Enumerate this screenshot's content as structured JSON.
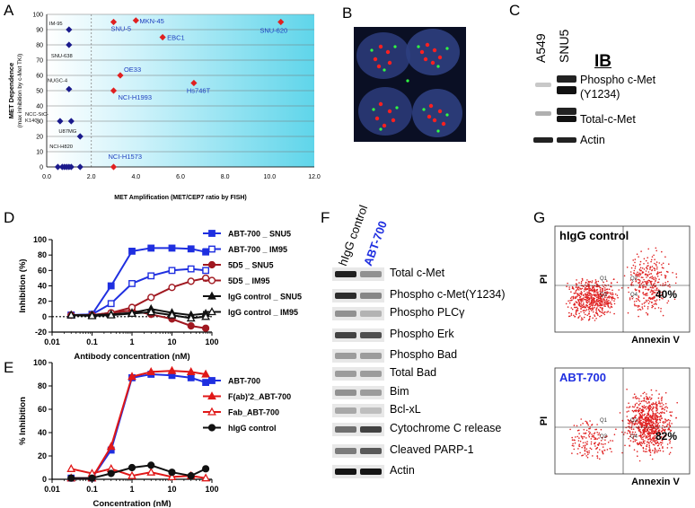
{
  "figure": {
    "panel_letters": [
      "A",
      "B",
      "C",
      "D",
      "E",
      "F",
      "G"
    ]
  },
  "chart_data": [
    {
      "panel": "A",
      "type": "scatter",
      "xlabel": "MET Amplification (MET/CEP7 ratio by FISH)",
      "ylabel_line1": "MET Dependence",
      "ylabel_line2": "(max inhibition by c-Met TKI)",
      "xlim": [
        0,
        12
      ],
      "ylim": [
        0,
        100
      ],
      "xticks": [
        "0.0",
        "2.0",
        "4.0",
        "6.0",
        "8.0",
        "10.0",
        "12.0"
      ],
      "yticks": [
        "0",
        "10",
        "20",
        "30",
        "40",
        "50",
        "60",
        "70",
        "80",
        "90",
        "100"
      ],
      "grid": true,
      "colors": {
        "background_left": "#ffffff",
        "background_right": "#5fd5ea",
        "diamond_blue": "#1a1a8c",
        "diamond_red": "#e02020",
        "label_blue": "#1f3fbf"
      },
      "points": [
        {
          "x": 1.0,
          "y": 90,
          "color": "blue",
          "label": "IM-95"
        },
        {
          "x": 1.0,
          "y": 80,
          "color": "blue",
          "label": "SNU-638"
        },
        {
          "x": 1.0,
          "y": 51,
          "color": "blue",
          "label": "NUGC-4"
        },
        {
          "x": 0.6,
          "y": 30,
          "color": "blue",
          "label": "NCC-StC-K140"
        },
        {
          "x": 1.1,
          "y": 30,
          "color": "blue",
          "label": "U87MG"
        },
        {
          "x": 1.5,
          "y": 20,
          "color": "blue",
          "label": "NCI-H820"
        },
        {
          "x": 0.5,
          "y": 0,
          "color": "blue",
          "label": ""
        },
        {
          "x": 0.7,
          "y": 0,
          "color": "blue",
          "label": ""
        },
        {
          "x": 0.8,
          "y": 0,
          "color": "blue",
          "label": ""
        },
        {
          "x": 0.9,
          "y": 0,
          "color": "blue",
          "label": ""
        },
        {
          "x": 1.0,
          "y": 0,
          "color": "blue",
          "label": ""
        },
        {
          "x": 1.1,
          "y": 0,
          "color": "blue",
          "label": ""
        },
        {
          "x": 1.5,
          "y": 0,
          "color": "blue",
          "label": ""
        },
        {
          "x": 3.0,
          "y": 95,
          "color": "red",
          "label": "SNU-5"
        },
        {
          "x": 4.0,
          "y": 96,
          "color": "red",
          "label": "MKN-45"
        },
        {
          "x": 5.2,
          "y": 85,
          "color": "red",
          "label": "EBC1"
        },
        {
          "x": 10.5,
          "y": 95,
          "color": "red",
          "label": "SNU-620"
        },
        {
          "x": 3.3,
          "y": 60,
          "color": "red",
          "label": "OE33"
        },
        {
          "x": 3.0,
          "y": 50,
          "color": "red",
          "label": "NCI-H1993"
        },
        {
          "x": 6.6,
          "y": 55,
          "color": "red",
          "label": "Hs746T"
        },
        {
          "x": 3.0,
          "y": 0,
          "color": "red",
          "label": "NCI-H1573"
        }
      ]
    },
    {
      "panel": "D",
      "type": "line",
      "xscale": "log",
      "xlabel": "Antibody concentration (nM)",
      "ylabel": "Inhibition (%)",
      "xlim": [
        0.01,
        100
      ],
      "ylim": [
        -20,
        100
      ],
      "xticks": [
        "0.01",
        "0.1",
        "1",
        "10",
        "100"
      ],
      "yticks": [
        "-20",
        "0",
        "20",
        "40",
        "60",
        "80",
        "100"
      ],
      "x": [
        0.03,
        0.1,
        0.3,
        1,
        3,
        10,
        30,
        70
      ],
      "series": [
        {
          "name": "ABT-700 _ SNU5",
          "color": "#1f2fe0",
          "marker": "square-filled",
          "values": [
            2,
            3,
            40,
            85,
            89,
            89,
            88,
            84
          ]
        },
        {
          "name": "ABT-700 _ IM95",
          "color": "#1f2fe0",
          "marker": "square-open",
          "values": [
            2,
            3,
            17,
            43,
            53,
            60,
            62,
            60
          ]
        },
        {
          "name": "5D5 _ SNU5",
          "color": "#a01820",
          "marker": "circle-filled",
          "values": [
            2,
            2,
            5,
            8,
            3,
            -3,
            -12,
            -15
          ]
        },
        {
          "name": "5D5 _ IM95",
          "color": "#a01820",
          "marker": "circle-open",
          "values": [
            2,
            2,
            5,
            12,
            25,
            38,
            46,
            50
          ]
        },
        {
          "name": "IgG control _ SNU5",
          "color": "#111111",
          "marker": "triangle-filled",
          "values": [
            2,
            2,
            3,
            5,
            10,
            5,
            2,
            4
          ]
        },
        {
          "name": "IgG control _ IM95",
          "color": "#111111",
          "marker": "triangle-open",
          "values": [
            2,
            1,
            2,
            4,
            6,
            2,
            -2,
            0
          ]
        }
      ]
    },
    {
      "panel": "E",
      "type": "line",
      "xscale": "log",
      "xlabel": "Concentration (nM)",
      "ylabel": "% Inhibition",
      "xlim": [
        0.01,
        100
      ],
      "ylim": [
        0,
        100
      ],
      "xticks": [
        "0.01",
        "0.1",
        "1",
        "10",
        "100"
      ],
      "yticks": [
        "0",
        "20",
        "40",
        "60",
        "80",
        "100"
      ],
      "x": [
        0.03,
        0.1,
        0.3,
        1,
        3,
        10,
        30,
        70
      ],
      "series": [
        {
          "name": "ABT-700",
          "color": "#1f2fe0",
          "marker": "square-filled",
          "values": [
            1,
            1,
            25,
            87,
            90,
            89,
            87,
            83
          ]
        },
        {
          "name": "F(ab)'2_ABT-700",
          "color": "#e01818",
          "marker": "triangle-filled",
          "values": [
            1,
            1,
            28,
            88,
            92,
            93,
            92,
            90
          ]
        },
        {
          "name": "Fab_ABT-700",
          "color": "#e01818",
          "marker": "triangle-open",
          "values": [
            9,
            5,
            9,
            3,
            6,
            2,
            3,
            1
          ]
        },
        {
          "name": "hIgG control",
          "color": "#111111",
          "marker": "circle-filled",
          "values": [
            1,
            1,
            5,
            10,
            12,
            6,
            3,
            9
          ]
        }
      ]
    }
  ],
  "panel_b": {
    "description_colors": {
      "background": "#0a0f24",
      "nucleus": "#2a3a78",
      "red_signal": "#ff2020",
      "green_signal": "#30ff40"
    }
  },
  "panel_c": {
    "lanes": [
      "A549",
      "SNU5"
    ],
    "ib_label": "IB",
    "rows": [
      "Phospho c-Met",
      "(Y1234)",
      "Total-c-Met",
      "Actin"
    ]
  },
  "panel_f": {
    "lanes": [
      "hIgG control",
      "ABT-700"
    ],
    "lane_colors": {
      "control": "#000000",
      "abt700": "#1f2fe0"
    },
    "rows": [
      "Total c-Met",
      "Phospho c-Met(Y1234)",
      "Phospho PLCγ",
      "Phospho Erk",
      "Phospho Bad",
      "Total Bad",
      "Bim",
      "Bcl-xL",
      "Cytochrome C release",
      "Cleaved PARP-1",
      "Actin"
    ]
  },
  "panel_g": {
    "plots": [
      {
        "title": "hIgG control",
        "title_color": "#000000",
        "percent": "40%",
        "quadrants": [
          "Q1",
          "Q2",
          "Q3",
          "Q4"
        ]
      },
      {
        "title": "ABT-700",
        "title_color": "#1f2fe0",
        "percent": "82%",
        "quadrants": [
          "Q1",
          "Q2",
          "Q3",
          "Q4"
        ]
      }
    ],
    "ylabel": "PI",
    "xlabel": "Annexin V"
  }
}
